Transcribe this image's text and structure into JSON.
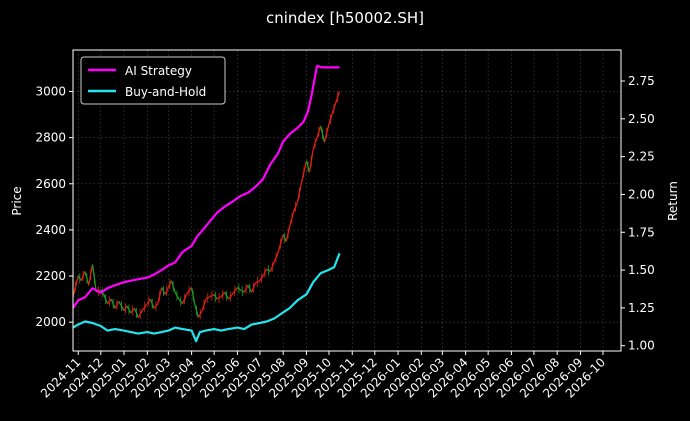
{
  "chart_data": {
    "type": "line",
    "title": "cnindex [h50002.SH]",
    "ylabel_left": "Price",
    "ylabel_right": "Return",
    "x_ticks": [
      "2024-11",
      "2024-12",
      "2025-01",
      "2025-02",
      "2025-03",
      "2025-04",
      "2025-05",
      "2025-06",
      "2025-07",
      "2025-08",
      "2025-09",
      "2025-10",
      "2025-11",
      "2025-12",
      "2026-01",
      "2026-02",
      "2026-03",
      "2026-04",
      "2026-05",
      "2026-06",
      "2026-07",
      "2026-08",
      "2026-09",
      "2026-10"
    ],
    "x_range": [
      "2024-10-25",
      "2026-10-25"
    ],
    "y_left_ticks": [
      2000,
      2200,
      2400,
      2600,
      2800,
      3000
    ],
    "y_left_range": [
      1875,
      3180
    ],
    "y_right_ticks": [
      "1.00",
      "1.25",
      "1.50",
      "1.75",
      "2.00",
      "2.25",
      "2.50",
      "2.75"
    ],
    "y_right_range": [
      0.965,
      2.955
    ],
    "grid": true,
    "legend_position": "top-left",
    "colors": {
      "ai": "#ff00ff",
      "bh": "#22e5f0",
      "up": "#e02010",
      "down": "#209a20",
      "grid": "#3a3a3a"
    },
    "series": [
      {
        "name": "AI Strategy",
        "axis": "right",
        "x": [
          "2024-10-25",
          "2024-11-01",
          "2024-11-10",
          "2024-11-20",
          "2024-12-01",
          "2024-12-10",
          "2024-12-20",
          "2025-01-01",
          "2025-01-10",
          "2025-01-20",
          "2025-02-01",
          "2025-02-10",
          "2025-02-20",
          "2025-03-01",
          "2025-03-10",
          "2025-03-20",
          "2025-04-01",
          "2025-04-08",
          "2025-04-15",
          "2025-04-25",
          "2025-05-05",
          "2025-05-15",
          "2025-05-25",
          "2025-06-05",
          "2025-06-15",
          "2025-06-25",
          "2025-07-05",
          "2025-07-15",
          "2025-07-25",
          "2025-08-01",
          "2025-08-10",
          "2025-08-20",
          "2025-08-28",
          "2025-09-03",
          "2025-09-08",
          "2025-09-15",
          "2025-09-22",
          "2025-09-30",
          "2025-10-10",
          "2025-10-15"
        ],
        "y": [
          1.25,
          1.3,
          1.32,
          1.38,
          1.35,
          1.38,
          1.4,
          1.42,
          1.43,
          1.44,
          1.45,
          1.47,
          1.5,
          1.53,
          1.55,
          1.62,
          1.66,
          1.72,
          1.76,
          1.82,
          1.88,
          1.92,
          1.95,
          1.99,
          2.01,
          2.05,
          2.1,
          2.2,
          2.27,
          2.35,
          2.4,
          2.44,
          2.48,
          2.55,
          2.66,
          2.85,
          2.84,
          2.84,
          2.84,
          2.84
        ]
      },
      {
        "name": "Buy-and-Hold",
        "axis": "right",
        "x": [
          "2024-10-25",
          "2024-11-01",
          "2024-11-10",
          "2024-11-20",
          "2024-12-01",
          "2024-12-10",
          "2024-12-20",
          "2025-01-01",
          "2025-01-10",
          "2025-01-20",
          "2025-02-01",
          "2025-02-10",
          "2025-02-20",
          "2025-03-01",
          "2025-03-10",
          "2025-03-20",
          "2025-04-01",
          "2025-04-07",
          "2025-04-12",
          "2025-04-20",
          "2025-05-01",
          "2025-05-10",
          "2025-05-20",
          "2025-06-01",
          "2025-06-10",
          "2025-06-20",
          "2025-07-01",
          "2025-07-10",
          "2025-07-20",
          "2025-08-01",
          "2025-08-10",
          "2025-08-20",
          "2025-09-01",
          "2025-09-10",
          "2025-09-20",
          "2025-09-30",
          "2025-10-08",
          "2025-10-15"
        ],
        "y": [
          1.12,
          1.14,
          1.16,
          1.15,
          1.13,
          1.1,
          1.11,
          1.1,
          1.09,
          1.08,
          1.09,
          1.08,
          1.09,
          1.1,
          1.12,
          1.11,
          1.1,
          1.03,
          1.09,
          1.1,
          1.11,
          1.1,
          1.11,
          1.12,
          1.11,
          1.14,
          1.15,
          1.16,
          1.18,
          1.22,
          1.25,
          1.3,
          1.34,
          1.42,
          1.48,
          1.5,
          1.52,
          1.61
        ]
      },
      {
        "name": "Price",
        "axis": "left",
        "x": [
          "2024-10-25",
          "2024-11-01",
          "2024-11-05",
          "2024-11-10",
          "2024-11-15",
          "2024-11-20",
          "2024-11-25",
          "2024-12-01",
          "2024-12-05",
          "2024-12-10",
          "2024-12-15",
          "2024-12-20",
          "2024-12-25",
          "2025-01-01",
          "2025-01-05",
          "2025-01-10",
          "2025-01-15",
          "2025-01-20",
          "2025-01-25",
          "2025-02-01",
          "2025-02-05",
          "2025-02-10",
          "2025-02-15",
          "2025-02-20",
          "2025-02-25",
          "2025-03-01",
          "2025-03-05",
          "2025-03-10",
          "2025-03-15",
          "2025-03-20",
          "2025-03-25",
          "2025-04-01",
          "2025-04-05",
          "2025-04-10",
          "2025-04-15",
          "2025-04-20",
          "2025-04-25",
          "2025-05-01",
          "2025-05-05",
          "2025-05-10",
          "2025-05-15",
          "2025-05-20",
          "2025-05-25",
          "2025-06-01",
          "2025-06-05",
          "2025-06-10",
          "2025-06-15",
          "2025-06-20",
          "2025-06-25",
          "2025-07-01",
          "2025-07-05",
          "2025-07-10",
          "2025-07-15",
          "2025-07-20",
          "2025-07-25",
          "2025-08-01",
          "2025-08-05",
          "2025-08-10",
          "2025-08-15",
          "2025-08-20",
          "2025-08-25",
          "2025-09-01",
          "2025-09-05",
          "2025-09-10",
          "2025-09-15",
          "2025-09-20",
          "2025-09-25",
          "2025-10-01",
          "2025-10-05",
          "2025-10-10",
          "2025-10-15"
        ],
        "y": [
          2110,
          2200,
          2180,
          2220,
          2160,
          2250,
          2130,
          2140,
          2120,
          2080,
          2100,
          2060,
          2090,
          2050,
          2070,
          2040,
          2060,
          2020,
          2050,
          2080,
          2100,
          2060,
          2080,
          2150,
          2120,
          2150,
          2180,
          2130,
          2100,
          2080,
          2120,
          2150,
          2080,
          2020,
          2050,
          2100,
          2110,
          2120,
          2100,
          2110,
          2130,
          2100,
          2120,
          2150,
          2140,
          2130,
          2160,
          2130,
          2170,
          2180,
          2200,
          2230,
          2220,
          2260,
          2300,
          2380,
          2350,
          2420,
          2480,
          2520,
          2600,
          2700,
          2650,
          2750,
          2800,
          2850,
          2780,
          2860,
          2900,
          2950,
          3000
        ]
      }
    ]
  }
}
